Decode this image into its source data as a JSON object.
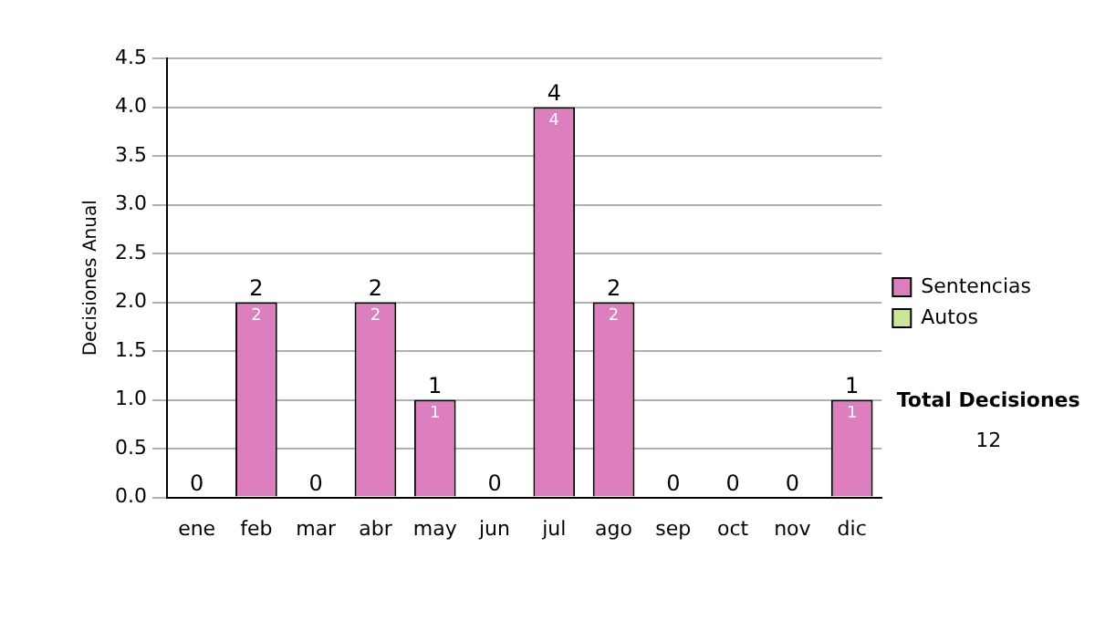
{
  "chart_data": {
    "type": "bar",
    "ylabel": "Decisiones Anual",
    "categories": [
      "ene",
      "feb",
      "mar",
      "abr",
      "may",
      "jun",
      "jul",
      "ago",
      "sep",
      "oct",
      "nov",
      "dic"
    ],
    "stacked": true,
    "series": [
      {
        "name": "Sentencias",
        "color": "#dd7fbf",
        "values": [
          0,
          2,
          0,
          2,
          1,
          0,
          4,
          2,
          0,
          0,
          0,
          1
        ],
        "value_labels": [
          null,
          "2",
          null,
          "2",
          "1",
          null,
          "4",
          "2",
          null,
          null,
          null,
          "1"
        ]
      },
      {
        "name": "Autos",
        "color": "#cce699",
        "values": [
          0,
          0,
          0,
          0,
          0,
          0,
          0,
          0,
          0,
          0,
          0,
          0
        ]
      }
    ],
    "totals": [
      "0",
      "2",
      "0",
      "2",
      "1",
      "0",
      "4",
      "2",
      "0",
      "0",
      "0",
      "1"
    ],
    "ylim": [
      0,
      4.5
    ],
    "yticks": [
      {
        "value": 0,
        "label": "0.0"
      },
      {
        "value": 0.5,
        "label": "0.5"
      },
      {
        "value": 1,
        "label": "1.0"
      },
      {
        "value": 1.5,
        "label": "1.5"
      },
      {
        "value": 2,
        "label": "2.0"
      },
      {
        "value": 2.5,
        "label": "2.5"
      },
      {
        "value": 3,
        "label": "3.0"
      },
      {
        "value": 3.5,
        "label": "3.5"
      },
      {
        "value": 4,
        "label": "4.0"
      },
      {
        "value": 4.5,
        "label": "4.5"
      }
    ],
    "grid": "y",
    "legend": "right",
    "annotations": [
      "Total Decisiones",
      "12"
    ]
  }
}
